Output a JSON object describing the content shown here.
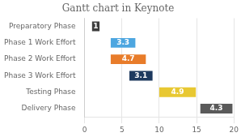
{
  "chart_data": {
    "type": "bar",
    "orientation": "horizontal",
    "title": "Gantt chart in Keynote",
    "categories": [
      "Preparatory Phase",
      "Phase 1 Work Effort",
      "Phase 2 Work Effort",
      "Phase 3 Work Effort",
      "Testing Phase",
      "Delivery Phase"
    ],
    "starts": [
      1,
      3.5,
      3.5,
      6.0,
      10.0,
      15.5
    ],
    "values": [
      1,
      3.3,
      4.7,
      3.1,
      4.9,
      4.3
    ],
    "colors": [
      "#3d3d3d",
      "#4da6e0",
      "#e87c2a",
      "#1e3a5f",
      "#e8c832",
      "#5a5a5a"
    ],
    "xlim": [
      0,
      20
    ],
    "xticks": [
      0,
      5,
      10,
      15,
      20
    ],
    "grid": true,
    "data_labels": true
  }
}
